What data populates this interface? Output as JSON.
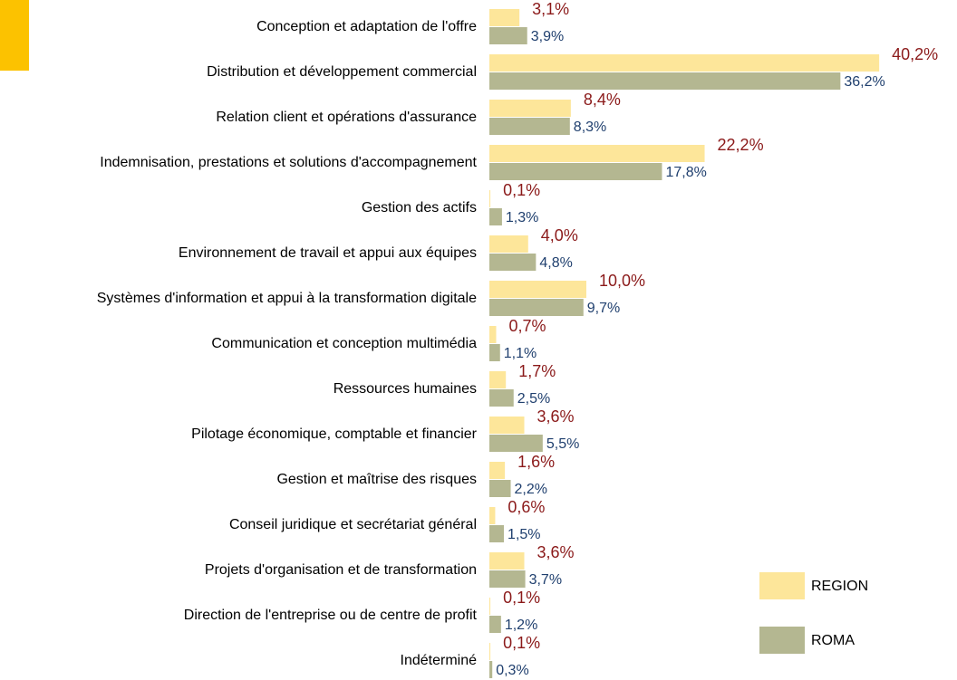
{
  "chart_data": {
    "type": "hbar",
    "categories": [
      "Conception et adaptation de l'offre",
      "Distribution et développement commercial",
      "Relation client et opérations d'assurance",
      "Indemnisation, prestations et solutions d'accompagnement",
      "Gestion des actifs",
      "Environnement de travail et appui aux équipes",
      "Systèmes d'information et appui à la transformation digitale",
      "Communication et conception multimédia",
      "Ressources humaines",
      "Pilotage économique, comptable et financier",
      "Gestion et maîtrise des risques",
      "Conseil juridique et secrétariat général",
      "Projets d'organisation et de transformation",
      "Direction de l'entreprise ou de centre de profit",
      "Indéterminé"
    ],
    "series": [
      {
        "name": "REGION",
        "color": "#fde69a",
        "label_color": "#8b1a1a",
        "values": [
          3.1,
          40.2,
          8.4,
          22.2,
          0.1,
          4.0,
          10.0,
          0.7,
          1.7,
          3.6,
          1.6,
          0.6,
          3.6,
          0.1,
          0.1
        ],
        "value_labels": [
          "3,1%",
          "40,2%",
          "8,4%",
          "22,2%",
          "0,1%",
          "4,0%",
          "10,0%",
          "0,7%",
          "1,7%",
          "3,6%",
          "1,6%",
          "0,6%",
          "3,6%",
          "0,1%",
          "0,1%"
        ]
      },
      {
        "name": "ROMA",
        "color": "#b4b791",
        "label_color": "#1f3f6e",
        "values": [
          3.9,
          36.2,
          8.3,
          17.8,
          1.3,
          4.8,
          9.7,
          1.1,
          2.5,
          5.5,
          2.2,
          1.5,
          3.7,
          1.2,
          0.3
        ],
        "value_labels": [
          "3,9%",
          "36,2%",
          "8,3%",
          "17,8%",
          "1,3%",
          "4,8%",
          "9,7%",
          "1,1%",
          "2,5%",
          "5,5%",
          "2,2%",
          "1,5%",
          "3,7%",
          "1,2%",
          "0,3%"
        ]
      }
    ]
  }
}
